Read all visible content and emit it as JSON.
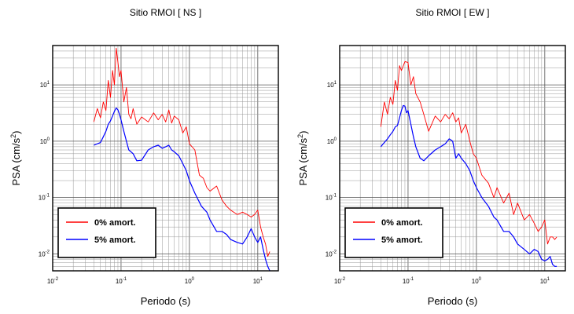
{
  "chart_data": [
    {
      "type": "line",
      "title": "Sitio RMOI [ NS ]",
      "xlabel": "Periodo (s)",
      "ylabel": {
        "main": "PSA (cm/s",
        "sup": "2",
        "close": ")"
      },
      "xscale": "log",
      "yscale": "log",
      "xlim": [
        0.01,
        20
      ],
      "ylim": [
        0.005,
        50
      ],
      "grid": true,
      "legend_position": "bottom-left",
      "xticks": [
        {
          "base": "10",
          "exp": "-2"
        },
        {
          "base": "10",
          "exp": "-1"
        },
        {
          "base": "10",
          "exp": "0"
        },
        {
          "base": "10",
          "exp": "1"
        }
      ],
      "yticks": [
        {
          "base": "10",
          "exp": "-2"
        },
        {
          "base": "10",
          "exp": "-1"
        },
        {
          "base": "10",
          "exp": "0"
        },
        {
          "base": "10",
          "exp": "1"
        }
      ],
      "series": [
        {
          "name": "0% amort.",
          "color": "#ff0000",
          "x": [
            0.04,
            0.045,
            0.05,
            0.055,
            0.06,
            0.065,
            0.07,
            0.075,
            0.08,
            0.085,
            0.09,
            0.095,
            0.1,
            0.11,
            0.12,
            0.13,
            0.14,
            0.15,
            0.17,
            0.2,
            0.25,
            0.3,
            0.35,
            0.4,
            0.45,
            0.5,
            0.55,
            0.6,
            0.7,
            0.8,
            0.9,
            1.0,
            1.2,
            1.4,
            1.6,
            1.8,
            2.0,
            2.5,
            3.0,
            3.5,
            4.0,
            5.0,
            6.0,
            7.0,
            8.0,
            9.0,
            10,
            11,
            12,
            13,
            14,
            15
          ],
          "y": [
            2.2,
            3.8,
            2.6,
            5.0,
            3.5,
            12,
            6.0,
            18,
            10,
            45,
            25,
            14,
            18,
            5.0,
            9.0,
            3.0,
            2.5,
            3.8,
            2.0,
            2.7,
            2.2,
            3.2,
            2.4,
            3.0,
            2.2,
            3.6,
            2.1,
            2.8,
            2.4,
            1.4,
            1.8,
            0.9,
            0.7,
            0.25,
            0.22,
            0.15,
            0.13,
            0.16,
            0.09,
            0.07,
            0.06,
            0.05,
            0.055,
            0.05,
            0.045,
            0.05,
            0.06,
            0.03,
            0.02,
            0.015,
            0.009,
            0.011
          ]
        },
        {
          "name": "5% amort.",
          "color": "#0000ff",
          "x": [
            0.04,
            0.045,
            0.05,
            0.055,
            0.06,
            0.065,
            0.07,
            0.075,
            0.08,
            0.085,
            0.09,
            0.095,
            0.1,
            0.11,
            0.12,
            0.13,
            0.15,
            0.17,
            0.2,
            0.25,
            0.3,
            0.35,
            0.4,
            0.45,
            0.5,
            0.55,
            0.6,
            0.7,
            0.8,
            0.9,
            1.0,
            1.2,
            1.5,
            1.8,
            2.0,
            2.5,
            3.0,
            3.5,
            4.0,
            5.0,
            6.0,
            7.0,
            8.0,
            9.0,
            10,
            11,
            12,
            13,
            14,
            15
          ],
          "y": [
            0.85,
            0.9,
            0.95,
            1.2,
            1.5,
            2.0,
            2.3,
            2.8,
            3.4,
            3.9,
            3.6,
            3.0,
            2.4,
            1.5,
            1.0,
            0.7,
            0.6,
            0.45,
            0.46,
            0.7,
            0.8,
            0.85,
            0.75,
            0.8,
            0.85,
            0.7,
            0.65,
            0.55,
            0.4,
            0.3,
            0.2,
            0.12,
            0.07,
            0.055,
            0.04,
            0.025,
            0.025,
            0.022,
            0.018,
            0.016,
            0.015,
            0.02,
            0.028,
            0.02,
            0.016,
            0.02,
            0.012,
            0.008,
            0.006,
            0.005
          ]
        }
      ]
    },
    {
      "type": "line",
      "title": "Sitio RMOI [ EW ]",
      "xlabel": "Periodo (s)",
      "ylabel": {
        "main": "PSA (cm/s",
        "sup": "2",
        "close": ")"
      },
      "xscale": "log",
      "yscale": "log",
      "xlim": [
        0.01,
        20
      ],
      "ylim": [
        0.005,
        50
      ],
      "grid": true,
      "legend_position": "bottom-left",
      "xticks": [
        {
          "base": "10",
          "exp": "-2"
        },
        {
          "base": "10",
          "exp": "-1"
        },
        {
          "base": "10",
          "exp": "0"
        },
        {
          "base": "10",
          "exp": "1"
        }
      ],
      "yticks": [
        {
          "base": "10",
          "exp": "-2"
        },
        {
          "base": "10",
          "exp": "-1"
        },
        {
          "base": "10",
          "exp": "0"
        },
        {
          "base": "10",
          "exp": "1"
        }
      ],
      "series": [
        {
          "name": "0% amort.",
          "color": "#ff0000",
          "x": [
            0.04,
            0.045,
            0.05,
            0.055,
            0.06,
            0.065,
            0.07,
            0.075,
            0.08,
            0.09,
            0.1,
            0.11,
            0.12,
            0.13,
            0.15,
            0.17,
            0.2,
            0.25,
            0.3,
            0.35,
            0.4,
            0.45,
            0.5,
            0.55,
            0.6,
            0.7,
            0.8,
            0.9,
            1.0,
            1.2,
            1.5,
            1.8,
            2.0,
            2.5,
            3.0,
            3.5,
            4.0,
            5.0,
            6.0,
            7.0,
            8.0,
            9.0,
            10,
            11,
            12,
            13,
            14,
            15
          ],
          "y": [
            1.8,
            5.0,
            3.0,
            6.0,
            4.5,
            12,
            8.0,
            22,
            18,
            26,
            25,
            10,
            14,
            7.0,
            5.0,
            3.0,
            1.5,
            2.8,
            2.2,
            3.0,
            2.5,
            3.2,
            2.2,
            2.6,
            1.4,
            2.0,
            1.0,
            0.6,
            0.5,
            0.25,
            0.18,
            0.1,
            0.15,
            0.08,
            0.12,
            0.05,
            0.08,
            0.04,
            0.05,
            0.035,
            0.025,
            0.03,
            0.04,
            0.015,
            0.02,
            0.02,
            0.018,
            0.02
          ]
        },
        {
          "name": "5% amort.",
          "color": "#0000ff",
          "x": [
            0.04,
            0.045,
            0.05,
            0.055,
            0.06,
            0.065,
            0.07,
            0.075,
            0.08,
            0.085,
            0.09,
            0.095,
            0.1,
            0.11,
            0.12,
            0.13,
            0.15,
            0.17,
            0.2,
            0.25,
            0.3,
            0.35,
            0.4,
            0.45,
            0.5,
            0.55,
            0.6,
            0.7,
            0.8,
            0.9,
            1.0,
            1.2,
            1.5,
            1.8,
            2.0,
            2.5,
            3.0,
            3.5,
            4.0,
            5.0,
            6.0,
            7.0,
            8.0,
            9.0,
            10,
            11,
            12,
            13,
            14,
            15
          ],
          "y": [
            0.8,
            0.95,
            1.1,
            1.3,
            1.5,
            1.8,
            1.9,
            2.6,
            3.5,
            4.3,
            4.2,
            3.2,
            3.5,
            2.0,
            1.2,
            0.8,
            0.5,
            0.45,
            0.55,
            0.7,
            0.8,
            0.9,
            1.1,
            1.0,
            0.5,
            0.6,
            0.5,
            0.4,
            0.3,
            0.2,
            0.15,
            0.1,
            0.07,
            0.045,
            0.04,
            0.025,
            0.025,
            0.02,
            0.015,
            0.012,
            0.01,
            0.012,
            0.011,
            0.008,
            0.0075,
            0.008,
            0.009,
            0.0065,
            0.006,
            0.006
          ]
        }
      ]
    }
  ]
}
